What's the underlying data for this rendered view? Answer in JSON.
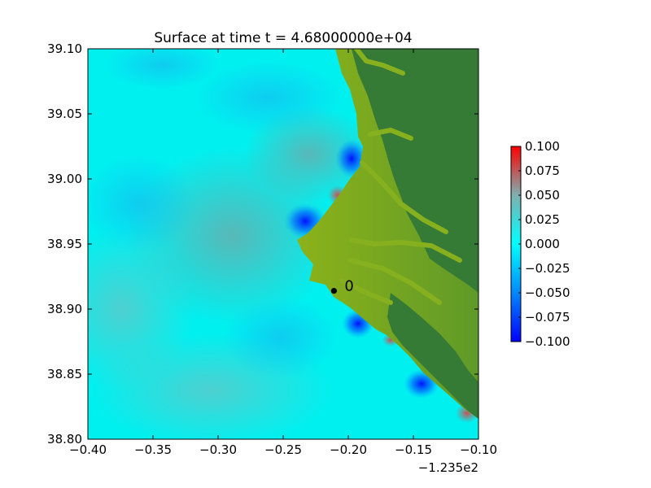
{
  "chart_data": {
    "type": "heatmap",
    "title": "Surface at time t = 4.68000000e+04",
    "xlabel": "",
    "ylabel": "",
    "xlim": [
      -0.4,
      -0.1
    ],
    "ylim": [
      38.8,
      39.1
    ],
    "x_ticks": [
      "−0.40",
      "−0.35",
      "−0.30",
      "−0.25",
      "−0.20",
      "−0.15",
      "−0.10"
    ],
    "x_tick_values": [
      -0.4,
      -0.35,
      -0.3,
      -0.25,
      -0.2,
      -0.15,
      -0.1
    ],
    "x_offset_label": "−1.235e2",
    "y_ticks": [
      "38.80",
      "38.85",
      "38.90",
      "38.95",
      "39.00",
      "39.05",
      "39.10"
    ],
    "y_tick_values": [
      38.8,
      38.85,
      38.9,
      38.95,
      39.0,
      39.05,
      39.1
    ],
    "colorbar": {
      "range": [
        -0.1,
        0.1
      ],
      "ticks": [
        "0.100",
        "0.075",
        "0.050",
        "0.025",
        "0.000",
        "−0.025",
        "−0.050",
        "−0.075",
        "−0.100"
      ],
      "tick_values": [
        0.1,
        0.075,
        0.05,
        0.025,
        0.0,
        -0.025,
        -0.05,
        -0.075,
        -0.1
      ],
      "colormap": [
        "#0000ff",
        "#00ffff",
        "#ff0000"
      ]
    },
    "gauges": [
      {
        "label": "0",
        "x": -0.211,
        "y": 38.914
      }
    ],
    "colors": {
      "water_base": "#00f0f0",
      "land_low": "#7aa81a",
      "land_high": "#357a35",
      "positive_anomaly": "#a87878",
      "negative_anomaly": "#0030ff"
    }
  }
}
